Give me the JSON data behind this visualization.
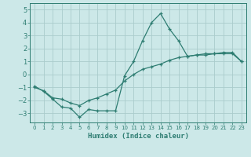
{
  "xlabel": "Humidex (Indice chaleur)",
  "background_color": "#cce8e8",
  "grid_color": "#aacccc",
  "line_color": "#2e7d72",
  "xlim": [
    -0.5,
    23.5
  ],
  "ylim": [
    -3.7,
    5.5
  ],
  "xticks": [
    0,
    1,
    2,
    3,
    4,
    5,
    6,
    7,
    8,
    9,
    10,
    11,
    12,
    13,
    14,
    15,
    16,
    17,
    18,
    19,
    20,
    21,
    22,
    23
  ],
  "yticks": [
    -3,
    -2,
    -1,
    0,
    1,
    2,
    3,
    4,
    5
  ],
  "line1_x": [
    0,
    1,
    2,
    3,
    4,
    5,
    6,
    7,
    8,
    9,
    10,
    11,
    12,
    13,
    14,
    15,
    16,
    17,
    18,
    19,
    20,
    21,
    22,
    23
  ],
  "line1_y": [
    -0.9,
    -1.3,
    -1.9,
    -2.5,
    -2.6,
    -3.3,
    -2.7,
    -2.8,
    -2.8,
    -2.8,
    -0.1,
    1.0,
    2.6,
    4.0,
    4.7,
    3.5,
    2.6,
    1.4,
    1.5,
    1.5,
    1.6,
    1.6,
    1.6,
    1.0
  ],
  "line2_x": [
    0,
    1,
    2,
    3,
    4,
    5,
    6,
    7,
    8,
    9,
    10,
    11,
    12,
    13,
    14,
    15,
    16,
    17,
    18,
    19,
    20,
    21,
    22,
    23
  ],
  "line2_y": [
    -1.0,
    -1.25,
    -1.8,
    -1.9,
    -2.2,
    -2.4,
    -2.0,
    -1.8,
    -1.5,
    -1.2,
    -0.5,
    0.0,
    0.4,
    0.6,
    0.8,
    1.1,
    1.3,
    1.4,
    1.5,
    1.6,
    1.6,
    1.7,
    1.7,
    1.0
  ]
}
